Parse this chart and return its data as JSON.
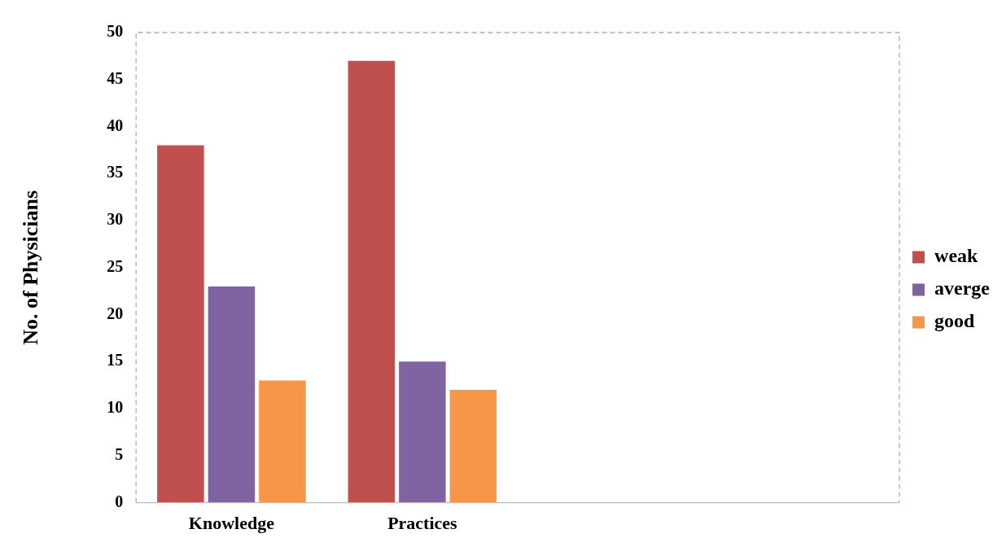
{
  "chart_data": {
    "type": "bar",
    "ylabel": "No. of Physicians",
    "categories": [
      "Knowledge",
      "Practices",
      null,
      null
    ],
    "series": [
      {
        "name": "weak",
        "color": "#c0504d",
        "values": [
          38,
          47,
          null,
          null
        ]
      },
      {
        "name": "averge",
        "color": "#8064a2",
        "values": [
          23,
          15,
          null,
          null
        ]
      },
      {
        "name": "good",
        "color": "#f79646",
        "values": [
          13,
          12,
          null,
          null
        ]
      }
    ],
    "ylim": [
      0,
      50
    ],
    "yticks": [
      0,
      5,
      10,
      15,
      20,
      25,
      30,
      35,
      40,
      45,
      50
    ],
    "grid": false,
    "legend": "right"
  }
}
